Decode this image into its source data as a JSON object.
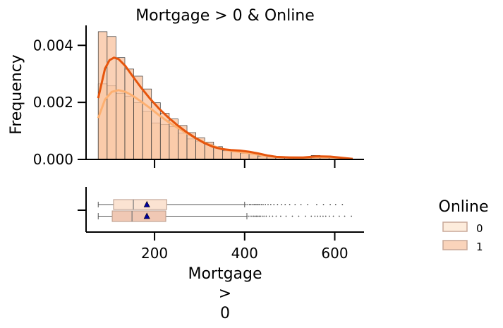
{
  "chart_data": {
    "type": "histogram+boxplot",
    "title": "Mortgage > 0 & Online",
    "ylabel": "Frequency",
    "xlabel_lines": [
      "Mortgage",
      ">",
      "0"
    ],
    "xticks": [
      "200",
      "400",
      "600"
    ],
    "xtick_values": [
      200,
      400,
      600
    ],
    "yticks": [
      "0.000",
      "0.002",
      "0.004"
    ],
    "ytick_values": [
      0,
      0.002,
      0.004
    ],
    "xlim": [
      48,
      665
    ],
    "ylim": [
      0,
      0.0047
    ],
    "bin_edges": [
      75,
      94.7,
      114.4,
      134.1,
      153.8,
      173.5,
      193.2,
      212.9,
      232.6,
      252.3,
      272,
      291.7,
      311.4,
      331.1,
      350.8,
      370.5,
      390.2,
      409.9,
      429.6,
      449.3,
      469,
      488.7,
      508.4,
      528.1,
      547.8,
      567.5,
      587.2,
      606.9,
      626.6
    ],
    "series": [
      {
        "name": "0",
        "color": "#fcdcbf",
        "kde_color": "#fdb071",
        "hist": [
          0.00265,
          0.00258,
          0.00232,
          0.00222,
          0.00199,
          0.00168,
          0.00128,
          0.00122,
          0.00115,
          0.00092,
          0.00072,
          0.00064,
          0.00054,
          0.00042,
          0.0003,
          0.00026,
          0.00021,
          0.00018,
          0.00012,
          8e-05,
          8e-05,
          5e-05,
          4e-05,
          3e-05,
          8e-05,
          0.00011,
          6e-05,
          3e-05
        ],
        "kde": [
          [
            75,
            0.00145
          ],
          [
            90,
            0.0021
          ],
          [
            105,
            0.00237
          ],
          [
            120,
            0.00243
          ],
          [
            135,
            0.00237
          ],
          [
            150,
            0.00225
          ],
          [
            170,
            0.00203
          ],
          [
            190,
            0.0018
          ],
          [
            210,
            0.00155
          ],
          [
            230,
            0.00132
          ],
          [
            250,
            0.00112
          ],
          [
            270,
            0.00093
          ],
          [
            290,
            0.00076
          ],
          [
            310,
            0.0006
          ],
          [
            330,
            0.00047
          ],
          [
            350,
            0.00037
          ],
          [
            370,
            0.0003
          ],
          [
            390,
            0.00026
          ],
          [
            410,
            0.00022
          ],
          [
            430,
            0.00017
          ],
          [
            450,
            0.00012
          ],
          [
            470,
            9e-05
          ],
          [
            500,
            7e-05
          ],
          [
            530,
            6e-05
          ],
          [
            560,
            8e-05
          ],
          [
            590,
            8e-05
          ],
          [
            615,
            5e-05
          ],
          [
            640,
            2e-05
          ]
        ],
        "box": {
          "whisker_low": 75,
          "q1": 109,
          "median": 153,
          "q3": 227,
          "whisker_high": 400,
          "mean": 183
        },
        "outliers": [
          403,
          407,
          411,
          414,
          418,
          421,
          424,
          427,
          430,
          433,
          437,
          441,
          446,
          452,
          458,
          465,
          473,
          482,
          490,
          500,
          512,
          525,
          540,
          560,
          575,
          590,
          602,
          617
        ]
      },
      {
        "name": "1",
        "color": "#f8c29e",
        "kde_color": "#e6550d",
        "hist": [
          0.00448,
          0.00431,
          0.00357,
          0.00317,
          0.00292,
          0.00247,
          0.00199,
          0.00162,
          0.00142,
          0.00119,
          0.00094,
          0.00076,
          0.00061,
          0.00045,
          0.00032,
          0.0003,
          0.00025,
          0.00021,
          0.00012,
          0.0001,
          7e-05,
          6e-05,
          6e-05,
          6e-05,
          0.00014,
          0.0001,
          6e-05,
          3e-05
        ],
        "kde": [
          [
            75,
            0.00215
          ],
          [
            90,
            0.00318
          ],
          [
            100,
            0.00348
          ],
          [
            110,
            0.00357
          ],
          [
            120,
            0.00352
          ],
          [
            135,
            0.00328
          ],
          [
            150,
            0.00295
          ],
          [
            170,
            0.00252
          ],
          [
            190,
            0.00213
          ],
          [
            210,
            0.00178
          ],
          [
            230,
            0.00148
          ],
          [
            250,
            0.00121
          ],
          [
            270,
            0.00097
          ],
          [
            290,
            0.00076
          ],
          [
            310,
            0.00058
          ],
          [
            330,
            0.00044
          ],
          [
            350,
            0.00036
          ],
          [
            370,
            0.00033
          ],
          [
            390,
            0.00031
          ],
          [
            410,
            0.00027
          ],
          [
            430,
            0.00021
          ],
          [
            450,
            0.00014
          ],
          [
            470,
            9e-05
          ],
          [
            500,
            7e-05
          ],
          [
            530,
            7e-05
          ],
          [
            560,
            0.00011
          ],
          [
            590,
            0.0001
          ],
          [
            615,
            6e-05
          ],
          [
            640,
            2e-05
          ]
        ],
        "box": {
          "whisker_low": 75,
          "q1": 106,
          "median": 150,
          "q3": 225,
          "whisker_high": 405,
          "mean": 183
        },
        "outliers": [
          408,
          412,
          416,
          420,
          423,
          426,
          429,
          432,
          435,
          439,
          443,
          448,
          455,
          462,
          470,
          480,
          492,
          506,
          520,
          535,
          548,
          556,
          562,
          568,
          574,
          580,
          588,
          597,
          610,
          622,
          637
        ]
      }
    ],
    "legend": {
      "title": "Online",
      "labels": [
        "0",
        "1"
      ],
      "placement": "right"
    }
  }
}
